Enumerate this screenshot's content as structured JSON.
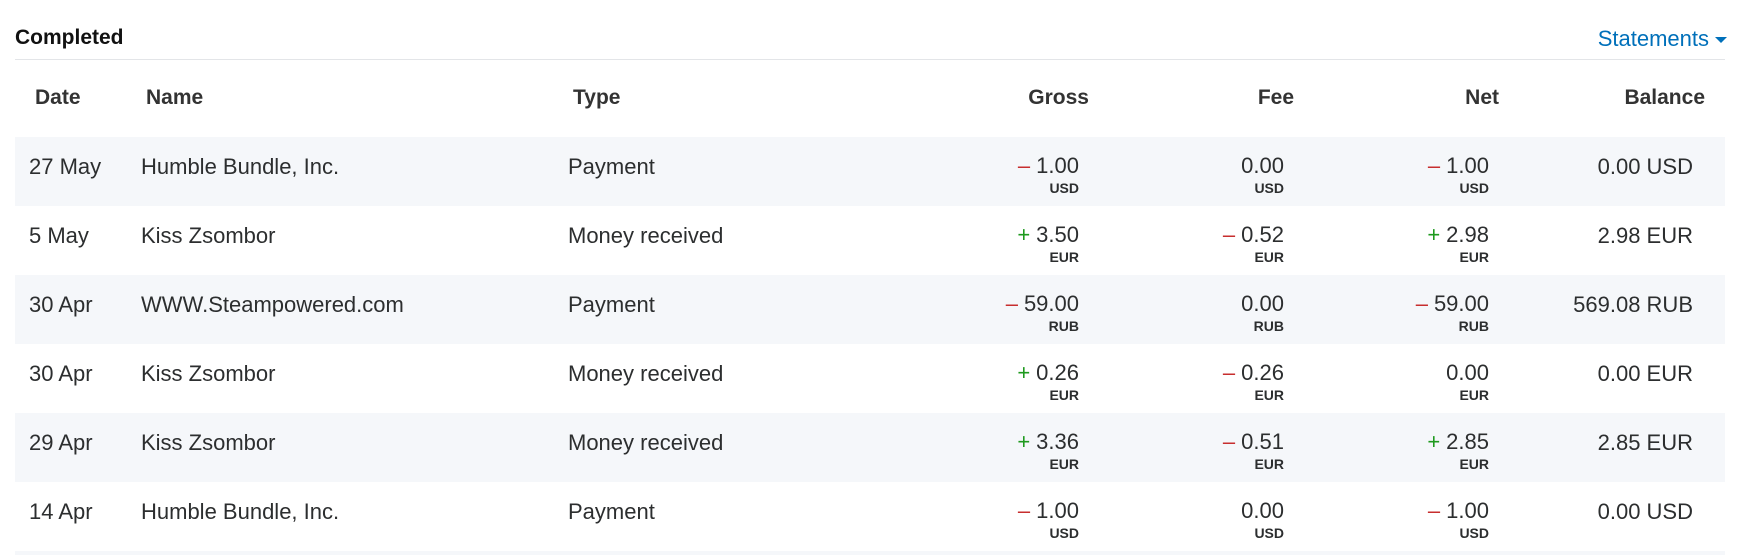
{
  "header": {
    "title": "Completed",
    "statements": "Statements"
  },
  "table": {
    "columns": [
      "Date",
      "Name",
      "Type",
      "Gross",
      "Fee",
      "Net",
      "Balance"
    ],
    "rows": [
      {
        "date": "27 May",
        "name": "Humble Bundle, Inc.",
        "type": "Payment",
        "gross": {
          "sign": "–",
          "amount": "1.00",
          "currency": "USD"
        },
        "fee": {
          "amount": "0.00",
          "currency": "USD"
        },
        "net": {
          "sign": "–",
          "amount": "1.00",
          "currency": "USD"
        },
        "balance": "0.00 USD"
      },
      {
        "date": "5 May",
        "name": "Kiss Zsombor",
        "type": "Money received",
        "gross": {
          "sign": "+",
          "amount": "3.50",
          "currency": "EUR"
        },
        "fee": {
          "sign": "–",
          "amount": "0.52",
          "currency": "EUR"
        },
        "net": {
          "sign": "+",
          "amount": "2.98",
          "currency": "EUR"
        },
        "balance": "2.98 EUR"
      },
      {
        "date": "30 Apr",
        "name": "WWW.Steampowered.com",
        "type": "Payment",
        "gross": {
          "sign": "–",
          "amount": "59.00",
          "currency": "RUB"
        },
        "fee": {
          "amount": "0.00",
          "currency": "RUB"
        },
        "net": {
          "sign": "–",
          "amount": "59.00",
          "currency": "RUB"
        },
        "balance": "569.08 RUB"
      },
      {
        "date": "30 Apr",
        "name": "Kiss Zsombor",
        "type": "Money received",
        "gross": {
          "sign": "+",
          "amount": "0.26",
          "currency": "EUR"
        },
        "fee": {
          "sign": "–",
          "amount": "0.26",
          "currency": "EUR"
        },
        "net": {
          "amount": "0.00",
          "currency": "EUR"
        },
        "balance": "0.00 EUR"
      },
      {
        "date": "29 Apr",
        "name": "Kiss Zsombor",
        "type": "Money received",
        "gross": {
          "sign": "+",
          "amount": "3.36",
          "currency": "EUR"
        },
        "fee": {
          "sign": "–",
          "amount": "0.51",
          "currency": "EUR"
        },
        "net": {
          "sign": "+",
          "amount": "2.85",
          "currency": "EUR"
        },
        "balance": "2.85 EUR"
      },
      {
        "date": "14 Apr",
        "name": "Humble Bundle, Inc.",
        "type": "Payment",
        "gross": {
          "sign": "–",
          "amount": "1.00",
          "currency": "USD"
        },
        "fee": {
          "amount": "0.00",
          "currency": "USD"
        },
        "net": {
          "sign": "–",
          "amount": "1.00",
          "currency": "USD"
        },
        "balance": "0.00 USD"
      }
    ]
  }
}
